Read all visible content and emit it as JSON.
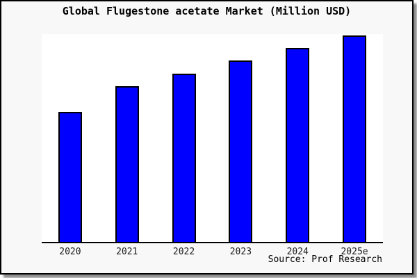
{
  "chart_data": {
    "type": "bar",
    "title": "Global Flugestone acetate Market (Million USD)",
    "categories": [
      "2020",
      "2021",
      "2022",
      "2023",
      "2024",
      "2025e"
    ],
    "values": [
      62.5,
      74.8,
      81.1,
      87.4,
      93.4,
      99.3
    ],
    "value_note": "y-axis has no ticks or labels; values estimated as percent of plot-area height",
    "xlabel": "",
    "ylabel": "",
    "ylim": [
      0,
      100
    ],
    "grid": false,
    "legend": false,
    "source": "Source: Prof Research",
    "colors": {
      "bar_fill": "#0000ff",
      "bar_border": "#000000",
      "frame_background": "#f8f8f8",
      "plot_background": "#ffffff",
      "axis_line": "#000000",
      "text": "#000000"
    }
  }
}
